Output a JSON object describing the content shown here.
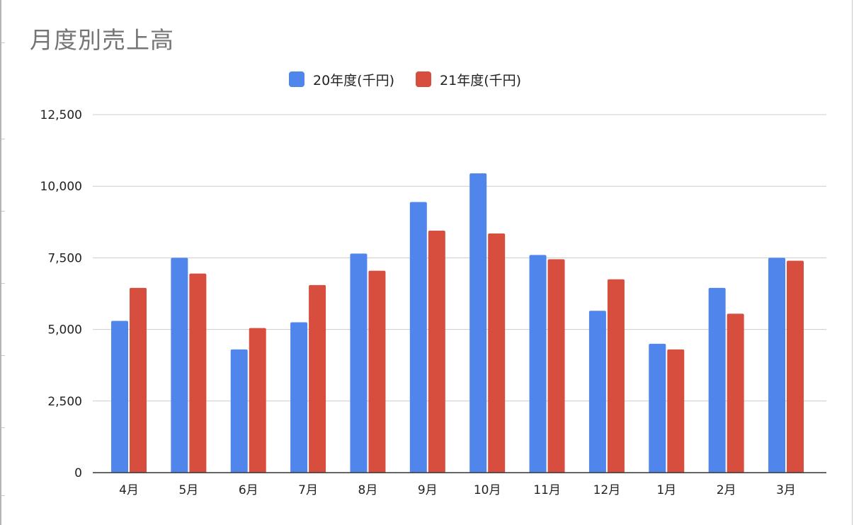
{
  "chart_data": {
    "type": "bar",
    "title": "月度別売上高",
    "xlabel": "",
    "ylabel": "",
    "categories": [
      "4月",
      "5月",
      "6月",
      "7月",
      "8月",
      "9月",
      "10月",
      "11月",
      "12月",
      "1月",
      "2月",
      "3月"
    ],
    "series": [
      {
        "name": "20年度(千円)",
        "color": "#5086ec",
        "values": [
          5300,
          7500,
          4300,
          5250,
          7650,
          9450,
          10450,
          7600,
          5650,
          4500,
          6450,
          7500
        ]
      },
      {
        "name": "21年度(千円)",
        "color": "#d74e3e",
        "values": [
          6450,
          6950,
          5050,
          6550,
          7050,
          8450,
          8350,
          7450,
          6750,
          4300,
          5550,
          7400
        ]
      }
    ],
    "ylim": [
      0,
      12500
    ],
    "yticks": [
      0,
      2500,
      5000,
      7500,
      10000,
      12500
    ],
    "ytick_labels": [
      "0",
      "2,500",
      "5,000",
      "7,500",
      "10,000",
      "12,500"
    ],
    "grid": true,
    "legend_position": "top-center"
  }
}
